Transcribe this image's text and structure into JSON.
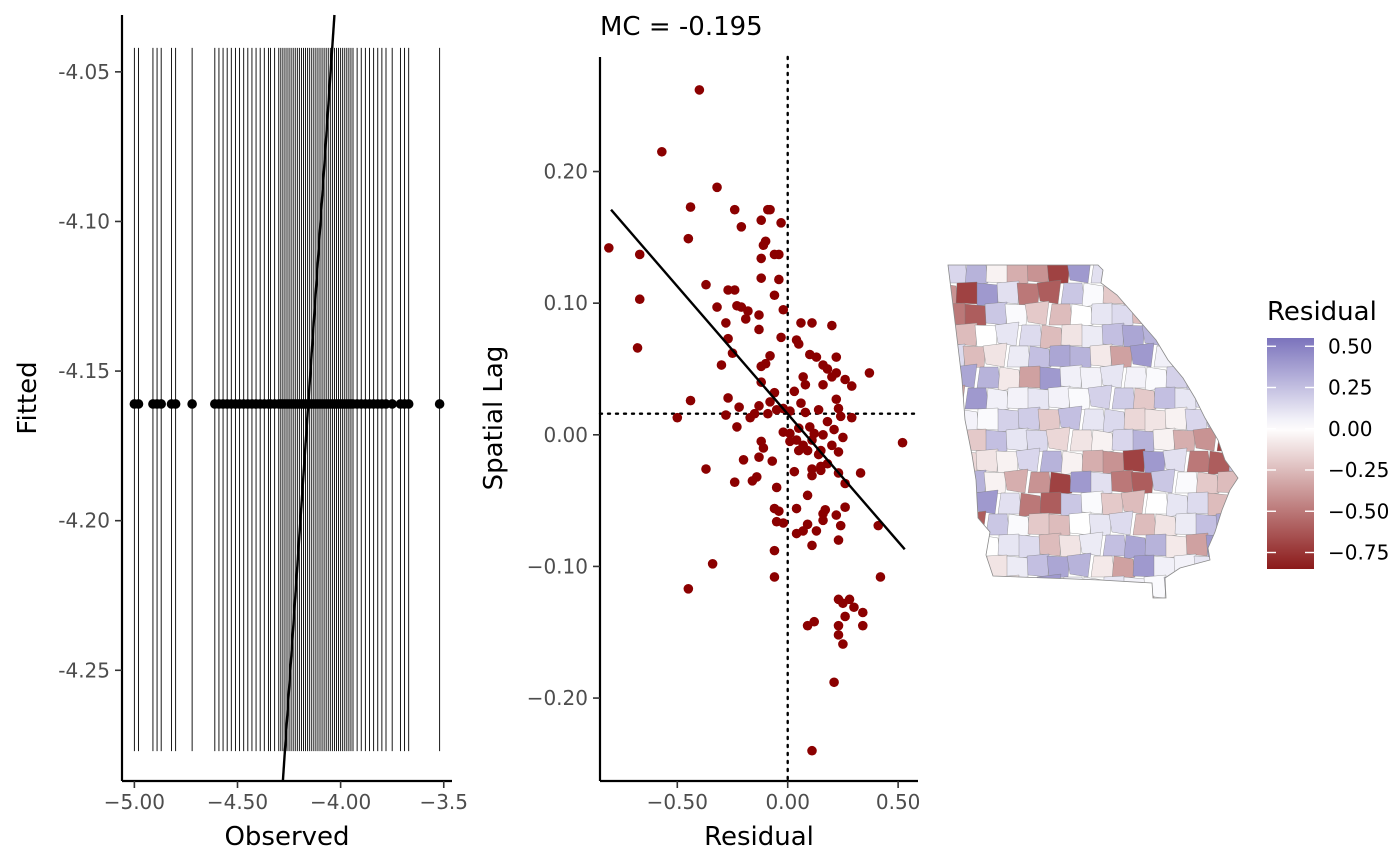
{
  "chart_data": [
    {
      "type": "scatter",
      "xlabel": "Observed",
      "ylabel": "Fitted",
      "xlim": [
        -5.06,
        -3.46
      ],
      "ylim": [
        -4.287,
        -4.031
      ],
      "x_ticks": [
        -5.0,
        -4.5,
        -4.0,
        -3.5
      ],
      "x_tick_labels": [
        "−5.00",
        "−4.50",
        "−4.00",
        "−3.5"
      ],
      "y_ticks": [
        -4.05,
        -4.1,
        -4.15,
        -4.2,
        -4.25
      ],
      "y_tick_labels": [
        "-4.05",
        "-4.10",
        "-4.15",
        "-4.20",
        "-4.25"
      ],
      "fitted_value": -4.161,
      "rug_range": [
        -4.277,
        -4.042
      ],
      "identity_line": [
        [
          -4.28,
          -4.287
        ],
        [
          -4.03,
          -4.031
        ]
      ],
      "observed": [
        -5.0,
        -4.98,
        -4.91,
        -4.89,
        -4.87,
        -4.82,
        -4.8,
        -4.72,
        -4.61,
        -4.59,
        -4.57,
        -4.55,
        -4.53,
        -4.51,
        -4.49,
        -4.47,
        -4.45,
        -4.43,
        -4.41,
        -4.39,
        -4.37,
        -4.35,
        -4.34,
        -4.32,
        -4.3,
        -4.29,
        -4.28,
        -4.27,
        -4.26,
        -4.25,
        -4.24,
        -4.23,
        -4.22,
        -4.21,
        -4.2,
        -4.19,
        -4.18,
        -4.17,
        -4.16,
        -4.15,
        -4.14,
        -4.13,
        -4.12,
        -4.11,
        -4.1,
        -4.09,
        -4.08,
        -4.07,
        -4.06,
        -4.05,
        -4.04,
        -4.03,
        -4.02,
        -4.01,
        -4.0,
        -3.99,
        -3.98,
        -3.97,
        -3.96,
        -3.95,
        -3.94,
        -3.92,
        -3.9,
        -3.88,
        -3.86,
        -3.84,
        -3.82,
        -3.8,
        -3.78,
        -3.75,
        -3.71,
        -3.69,
        -3.67,
        -3.52
      ]
    },
    {
      "type": "scatter",
      "title": "MC = -0.195",
      "xlabel": "Residual",
      "ylabel": "Spatial Lag",
      "xlim": [
        -0.85,
        0.59
      ],
      "ylim": [
        -0.263,
        0.287
      ],
      "x_ticks": [
        -0.5,
        0.0,
        0.5
      ],
      "x_tick_labels": [
        "−0.50",
        "0.00",
        "0.50"
      ],
      "y_ticks": [
        0.2,
        0.1,
        0.0,
        -0.1,
        -0.2
      ],
      "y_tick_labels": [
        "0.20",
        "0.10",
        "0.00",
        "−0.10",
        "−0.20"
      ],
      "mean_residual": 0.0,
      "mean_lag": 0.016,
      "regression_line": [
        [
          -0.8,
          0.171
        ],
        [
          0.53,
          -0.087
        ]
      ],
      "point_color": "#8B0000",
      "points": [
        [
          -0.4,
          0.262
        ],
        [
          -0.57,
          0.215
        ],
        [
          -0.32,
          0.188
        ],
        [
          -0.44,
          0.173
        ],
        [
          -0.08,
          0.171
        ],
        [
          -0.09,
          0.171
        ],
        [
          -0.24,
          0.171
        ],
        [
          -0.12,
          0.163
        ],
        [
          -0.03,
          0.161
        ],
        [
          -0.21,
          0.158
        ],
        [
          -0.45,
          0.149
        ],
        [
          -0.1,
          0.147
        ],
        [
          -0.11,
          0.144
        ],
        [
          -0.81,
          0.142
        ],
        [
          -0.67,
          0.137
        ],
        [
          -0.04,
          0.137
        ],
        [
          -0.06,
          0.137
        ],
        [
          -0.12,
          0.134
        ],
        [
          -0.12,
          0.119
        ],
        [
          -0.04,
          0.118
        ],
        [
          -0.37,
          0.114
        ],
        [
          -0.27,
          0.11
        ],
        [
          -0.24,
          0.11
        ],
        [
          -0.06,
          0.106
        ],
        [
          -0.67,
          0.103
        ],
        [
          -0.23,
          0.098
        ],
        [
          -0.21,
          0.097
        ],
        [
          -0.32,
          0.097
        ],
        [
          -0.18,
          0.094
        ],
        [
          -0.02,
          0.095
        ],
        [
          -0.13,
          0.091
        ],
        [
          -0.19,
          0.088
        ],
        [
          -0.28,
          0.085
        ],
        [
          0.06,
          0.085
        ],
        [
          0.11,
          0.085
        ],
        [
          0.2,
          0.083
        ],
        [
          -0.13,
          0.08
        ],
        [
          -0.27,
          0.073
        ],
        [
          -0.03,
          0.074
        ],
        [
          0.04,
          0.072
        ],
        [
          0.05,
          0.069
        ],
        [
          -0.68,
          0.066
        ],
        [
          -0.25,
          0.062
        ],
        [
          -0.08,
          0.06
        ],
        [
          0.1,
          0.061
        ],
        [
          0.13,
          0.059
        ],
        [
          0.22,
          0.059
        ],
        [
          -0.1,
          0.054
        ],
        [
          -0.12,
          0.052
        ],
        [
          0.16,
          0.053
        ],
        [
          0.18,
          0.05
        ],
        [
          -0.3,
          0.053
        ],
        [
          0.22,
          0.047
        ],
        [
          0.37,
          0.047
        ],
        [
          0.2,
          0.044
        ],
        [
          0.07,
          0.044
        ],
        [
          0.26,
          0.042
        ],
        [
          0.16,
          0.038
        ],
        [
          0.29,
          0.037
        ],
        [
          0.08,
          0.038
        ],
        [
          -0.12,
          0.04
        ],
        [
          -0.06,
          0.032
        ],
        [
          0.03,
          0.033
        ],
        [
          0.22,
          0.027
        ],
        [
          -0.44,
          0.026
        ],
        [
          -0.27,
          0.028
        ],
        [
          -0.08,
          0.025
        ],
        [
          0.06,
          0.024
        ],
        [
          -0.13,
          0.022
        ],
        [
          -0.22,
          0.021
        ],
        [
          -0.05,
          0.019
        ],
        [
          -0.02,
          0.02
        ],
        [
          0.01,
          0.018
        ],
        [
          0.14,
          0.019
        ],
        [
          0.23,
          0.02
        ],
        [
          0.08,
          0.017
        ],
        [
          -0.15,
          0.016
        ],
        [
          -0.09,
          0.016
        ],
        [
          0.24,
          0.014
        ],
        [
          -0.28,
          0.015
        ],
        [
          -0.5,
          0.013
        ],
        [
          0.29,
          0.013
        ],
        [
          -0.17,
          0.013
        ],
        [
          0.18,
          0.01
        ],
        [
          -0.23,
          0.006
        ],
        [
          0.05,
          0.005
        ],
        [
          0.1,
          0.006
        ],
        [
          0.21,
          0.004
        ],
        [
          0.01,
          0.001
        ],
        [
          0.12,
          0.001
        ],
        [
          -0.02,
          0.002
        ],
        [
          0.16,
          0.0
        ],
        [
          0.25,
          -0.002
        ],
        [
          -0.12,
          -0.005
        ],
        [
          0.11,
          -0.004
        ],
        [
          0.04,
          -0.004
        ],
        [
          0.01,
          -0.005
        ],
        [
          0.52,
          -0.006
        ],
        [
          0.07,
          -0.008
        ],
        [
          -0.11,
          -0.01
        ],
        [
          0.2,
          -0.008
        ],
        [
          0.09,
          -0.012
        ],
        [
          0.15,
          -0.012
        ],
        [
          0.05,
          -0.012
        ],
        [
          0.23,
          -0.013
        ],
        [
          0.14,
          -0.015
        ],
        [
          -0.13,
          -0.017
        ],
        [
          -0.2,
          -0.019
        ],
        [
          -0.07,
          -0.02
        ],
        [
          0.18,
          -0.022
        ],
        [
          0.15,
          -0.024
        ],
        [
          -0.37,
          -0.026
        ],
        [
          0.11,
          -0.026
        ],
        [
          0.15,
          -0.027
        ],
        [
          0.03,
          -0.028
        ],
        [
          0.33,
          -0.029
        ],
        [
          0.23,
          -0.029
        ],
        [
          0.11,
          -0.031
        ],
        [
          -0.14,
          -0.032
        ],
        [
          -0.16,
          -0.035
        ],
        [
          -0.24,
          -0.036
        ],
        [
          0.26,
          -0.037
        ],
        [
          -0.05,
          -0.04
        ],
        [
          0.09,
          -0.046
        ],
        [
          0.26,
          -0.055
        ],
        [
          -0.06,
          -0.056
        ],
        [
          0.04,
          -0.056
        ],
        [
          0.17,
          -0.057
        ],
        [
          -0.04,
          -0.058
        ],
        [
          0.16,
          -0.06
        ],
        [
          0.22,
          -0.061
        ],
        [
          0.16,
          -0.065
        ],
        [
          -0.05,
          -0.066
        ],
        [
          -0.02,
          -0.067
        ],
        [
          0.09,
          -0.068
        ],
        [
          0.24,
          -0.069
        ],
        [
          0.41,
          -0.069
        ],
        [
          0.07,
          -0.073
        ],
        [
          0.13,
          -0.073
        ],
        [
          0.04,
          -0.075
        ],
        [
          0.23,
          -0.08
        ],
        [
          0.11,
          -0.084
        ],
        [
          -0.06,
          -0.088
        ],
        [
          -0.34,
          -0.098
        ],
        [
          -0.06,
          -0.108
        ],
        [
          0.42,
          -0.108
        ],
        [
          -0.45,
          -0.117
        ],
        [
          0.23,
          -0.125
        ],
        [
          0.28,
          -0.125
        ],
        [
          0.25,
          -0.128
        ],
        [
          0.3,
          -0.131
        ],
        [
          0.34,
          -0.135
        ],
        [
          0.26,
          -0.138
        ],
        [
          0.12,
          -0.142
        ],
        [
          0.09,
          -0.145
        ],
        [
          0.34,
          -0.145
        ],
        [
          0.23,
          -0.145
        ],
        [
          0.23,
          -0.152
        ],
        [
          0.25,
          -0.159
        ],
        [
          0.21,
          -0.188
        ],
        [
          0.11,
          -0.24
        ]
      ]
    }
  ],
  "map": {
    "legend_title": "Residual",
    "legend_labels": [
      "0.50",
      "0.25",
      "0.00",
      "−0.25",
      "−0.50",
      "−0.75"
    ],
    "legend_values": [
      0.5,
      0.25,
      0.0,
      -0.25,
      -0.5,
      -0.75
    ],
    "scale_min": -0.85,
    "scale_max": 0.55,
    "colors": {
      "high": "#7B73BC",
      "mid": "#FFFFFF",
      "low": "#8B1A1A"
    }
  }
}
